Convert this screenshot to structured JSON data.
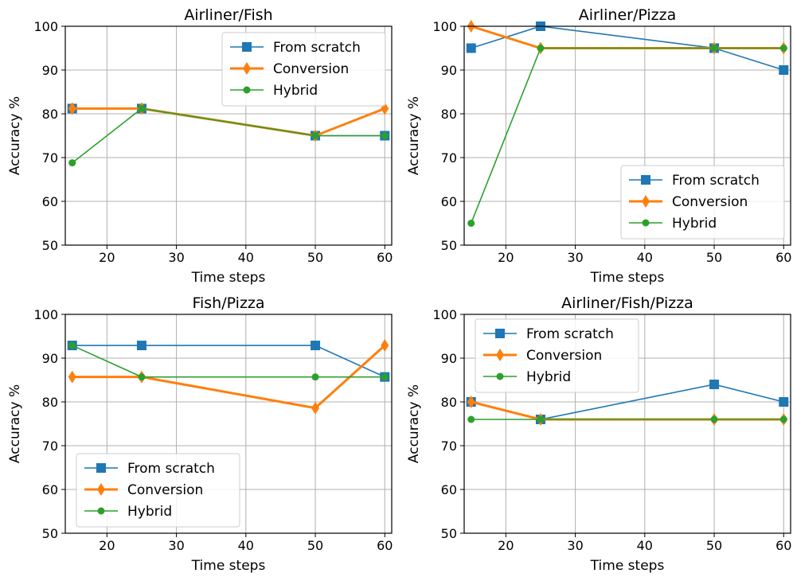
{
  "chart_data": [
    {
      "type": "line",
      "title": "Airliner/Fish",
      "xlabel": "Time steps",
      "ylabel": "Accuracy %",
      "x": [
        15,
        25,
        50,
        60
      ],
      "xticks": [
        20,
        30,
        40,
        50,
        60
      ],
      "yticks": [
        50,
        60,
        70,
        80,
        90,
        100
      ],
      "xlim": [
        14,
        61
      ],
      "ylim": [
        50,
        100
      ],
      "grid": true,
      "legend": "top-right",
      "series": [
        {
          "name": "From scratch",
          "values": [
            81.2,
            81.2,
            75,
            75
          ],
          "color": "#1f77b4",
          "marker": "square"
        },
        {
          "name": "Conversion",
          "values": [
            81.2,
            81.2,
            75,
            81.2
          ],
          "color": "#ff7f0e",
          "marker": "diamond"
        },
        {
          "name": "Hybrid",
          "values": [
            68.8,
            81.2,
            75,
            75
          ],
          "color": "#2ca02c",
          "marker": "circle"
        }
      ]
    },
    {
      "type": "line",
      "title": "Airliner/Pizza",
      "xlabel": "Time steps",
      "ylabel": "Accuracy %",
      "x": [
        15,
        25,
        50,
        60
      ],
      "xticks": [
        20,
        30,
        40,
        50,
        60
      ],
      "yticks": [
        50,
        60,
        70,
        80,
        90,
        100
      ],
      "xlim": [
        14,
        61
      ],
      "ylim": [
        50,
        100
      ],
      "grid": true,
      "legend": "bottom-right",
      "series": [
        {
          "name": "From scratch",
          "values": [
            95,
            100,
            95,
            90
          ],
          "color": "#1f77b4",
          "marker": "square"
        },
        {
          "name": "Conversion",
          "values": [
            100,
            95,
            95,
            95
          ],
          "color": "#ff7f0e",
          "marker": "diamond"
        },
        {
          "name": "Hybrid",
          "values": [
            55,
            95,
            95,
            95
          ],
          "color": "#2ca02c",
          "marker": "circle"
        }
      ]
    },
    {
      "type": "line",
      "title": "Fish/Pizza",
      "xlabel": "Time steps",
      "ylabel": "Accuracy %",
      "x": [
        15,
        25,
        50,
        60
      ],
      "xticks": [
        20,
        30,
        40,
        50,
        60
      ],
      "yticks": [
        50,
        60,
        70,
        80,
        90,
        100
      ],
      "xlim": [
        14,
        61
      ],
      "ylim": [
        50,
        100
      ],
      "grid": true,
      "legend": "bottom-left",
      "series": [
        {
          "name": "From scratch",
          "values": [
            92.9,
            92.9,
            92.9,
            85.7
          ],
          "color": "#1f77b4",
          "marker": "square"
        },
        {
          "name": "Conversion",
          "values": [
            85.7,
            85.7,
            78.6,
            92.9
          ],
          "color": "#ff7f0e",
          "marker": "diamond"
        },
        {
          "name": "Hybrid",
          "values": [
            92.9,
            85.7,
            85.7,
            85.7
          ],
          "color": "#2ca02c",
          "marker": "circle"
        }
      ]
    },
    {
      "type": "line",
      "title": "Airliner/Fish/Pizza",
      "xlabel": "Time steps",
      "ylabel": "Accuracy %",
      "x": [
        15,
        25,
        50,
        60
      ],
      "xticks": [
        20,
        30,
        40,
        50,
        60
      ],
      "yticks": [
        50,
        60,
        70,
        80,
        90,
        100
      ],
      "xlim": [
        14,
        61
      ],
      "ylim": [
        50,
        100
      ],
      "grid": true,
      "legend": "top-left",
      "series": [
        {
          "name": "From scratch",
          "values": [
            80,
            76,
            84,
            80
          ],
          "color": "#1f77b4",
          "marker": "square"
        },
        {
          "name": "Conversion",
          "values": [
            80,
            76,
            76,
            76
          ],
          "color": "#ff7f0e",
          "marker": "diamond"
        },
        {
          "name": "Hybrid",
          "values": [
            76,
            76,
            76,
            76
          ],
          "color": "#2ca02c",
          "marker": "circle"
        }
      ]
    }
  ]
}
